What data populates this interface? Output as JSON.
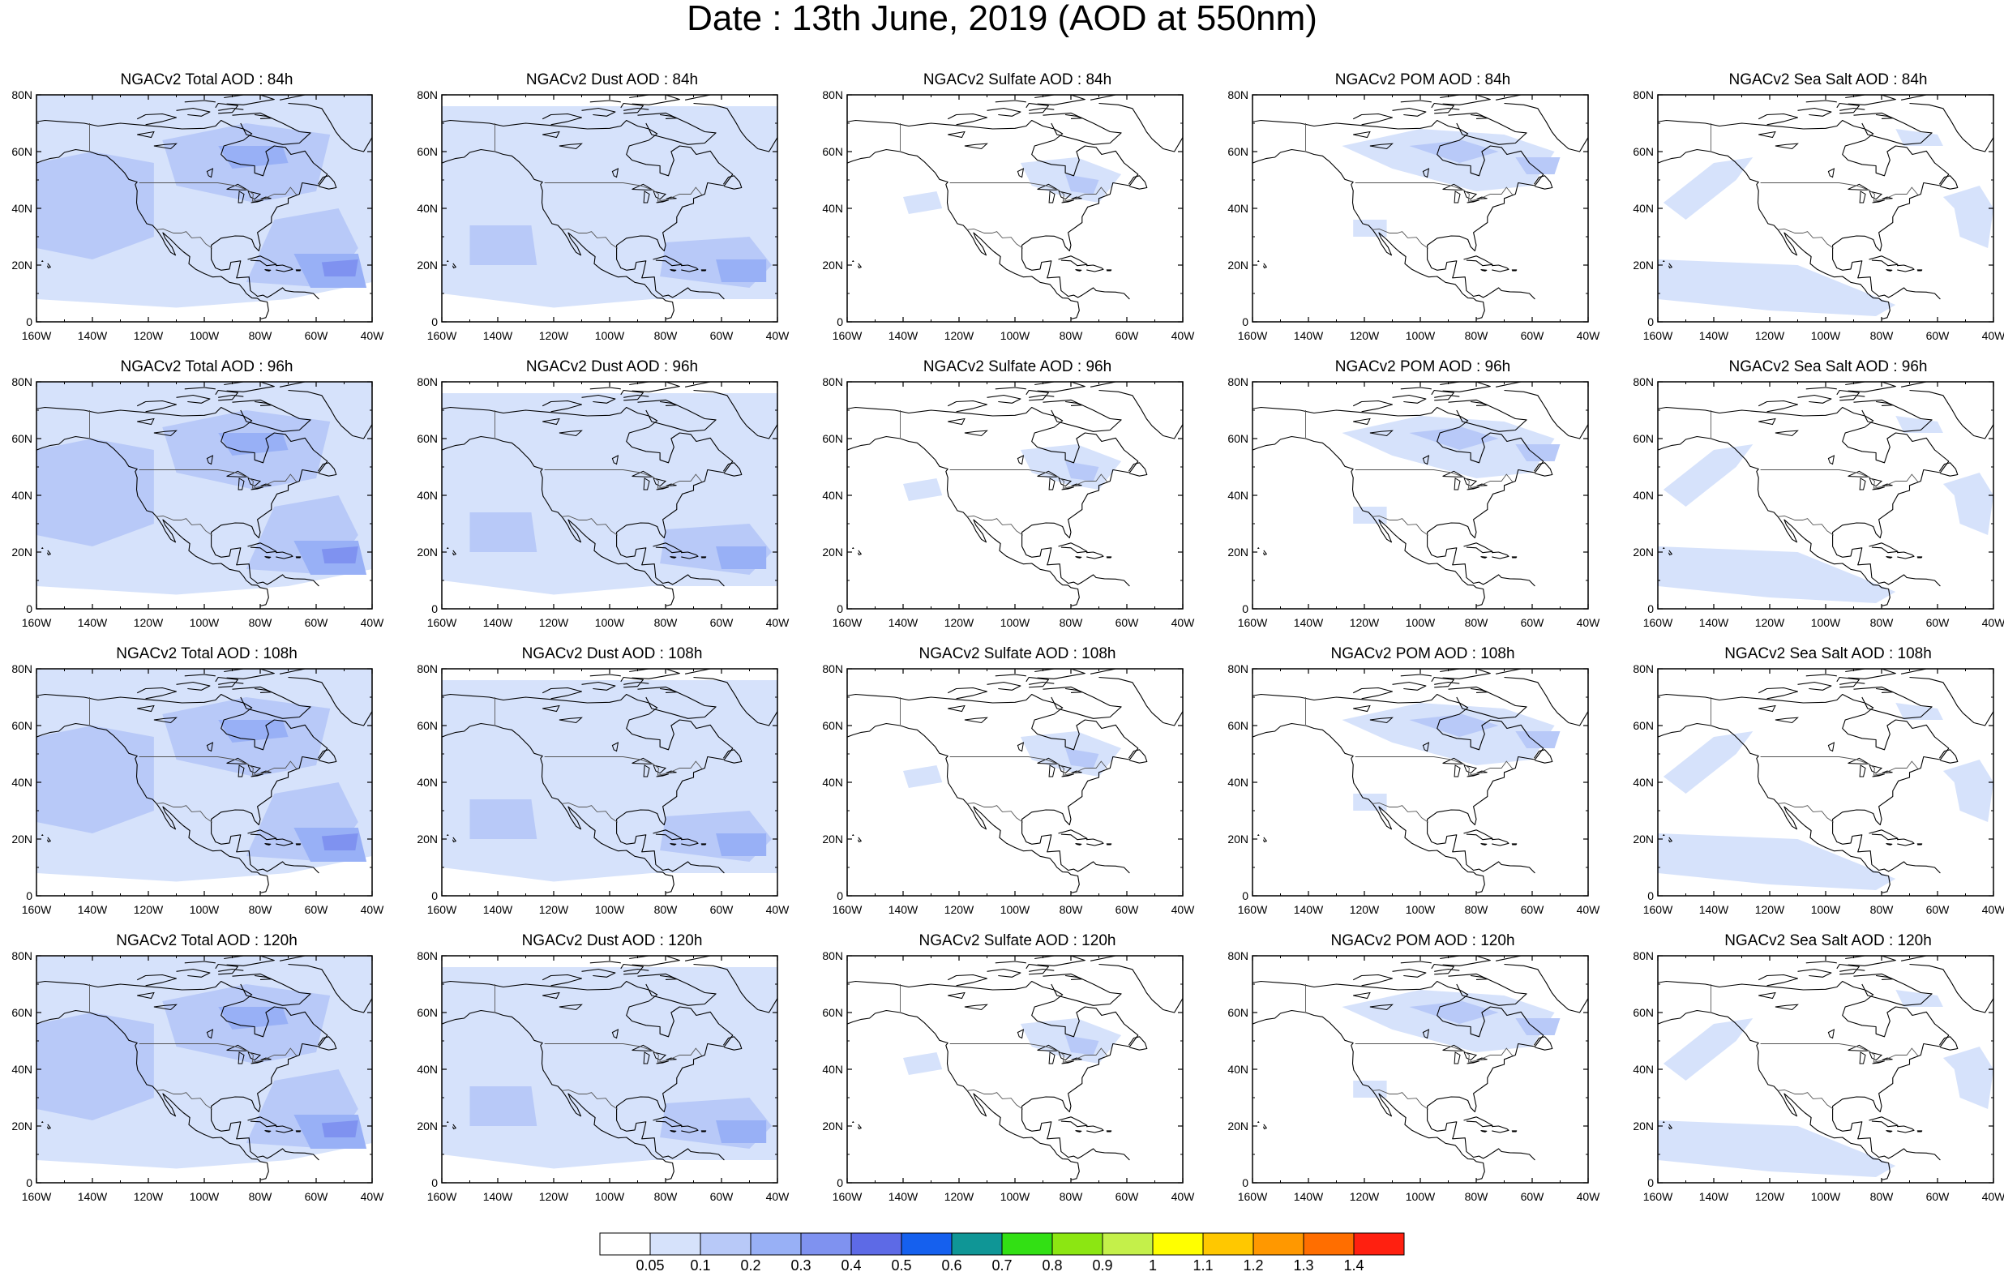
{
  "title": "Date : 13th June, 2019 (AOD at 550nm)",
  "panels": [
    [
      "NGACv2 Total AOD : 84h",
      "NGACv2 Dust AOD : 84h",
      "NGACv2 Sulfate AOD : 84h",
      "NGACv2 POM AOD : 84h",
      "NGACv2 Sea Salt AOD : 84h"
    ],
    [
      "NGACv2 Total AOD : 96h",
      "NGACv2 Dust AOD : 96h",
      "NGACv2 Sulfate AOD : 96h",
      "NGACv2 POM AOD : 96h",
      "NGACv2 Sea Salt AOD : 96h"
    ],
    [
      "NGACv2 Total AOD : 108h",
      "NGACv2 Dust AOD : 108h",
      "NGACv2 Sulfate AOD : 108h",
      "NGACv2 POM AOD : 108h",
      "NGACv2 Sea Salt AOD : 108h"
    ],
    [
      "NGACv2 Total AOD : 120h",
      "NGACv2 Dust AOD : 120h",
      "NGACv2 Sulfate AOD : 120h",
      "NGACv2 POM AOD : 120h",
      "NGACv2 Sea Salt  AOD : 120h"
    ]
  ],
  "map": {
    "lon_range": [
      -160,
      -40
    ],
    "lat_range": [
      0,
      80
    ],
    "lon_ticks": [
      "160W",
      "140W",
      "120W",
      "100W",
      "80W",
      "60W",
      "40W"
    ],
    "lat_ticks": [
      "0",
      "20N",
      "40N",
      "60N",
      "80N"
    ]
  },
  "colorbar": {
    "labels": [
      "0.05",
      "0.1",
      "0.2",
      "0.3",
      "0.4",
      "0.5",
      "0.6",
      "0.7",
      "0.8",
      "0.9",
      "1",
      "1.1",
      "1.2",
      "1.3",
      "1.4"
    ],
    "colors": [
      "#ffffff",
      "#d6e2fb",
      "#b8c9f8",
      "#98b0f6",
      "#7f92f0",
      "#5d6ae6",
      "#1560ee",
      "#0f9696",
      "#32e014",
      "#8ce612",
      "#c4f04a",
      "#ffff00",
      "#ffc800",
      "#ff9800",
      "#ff6e00",
      "#ff2010"
    ]
  }
}
